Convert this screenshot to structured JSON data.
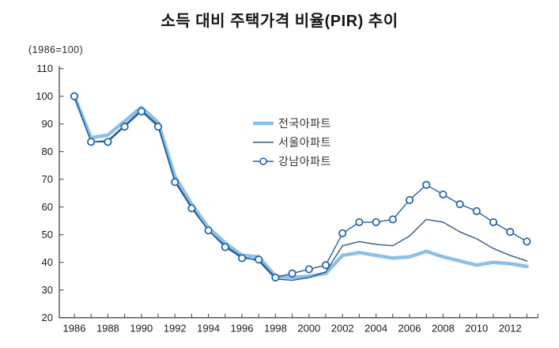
{
  "chart_data": {
    "type": "line",
    "title": "소득 대비 주택가격 비율(PIR) 추이",
    "unit_note": "(1986=100)",
    "xlabel": "",
    "ylabel": "",
    "ylim": [
      20,
      110
    ],
    "y_ticks": [
      20,
      30,
      40,
      50,
      60,
      70,
      80,
      90,
      100,
      110
    ],
    "x": [
      1986,
      1987,
      1988,
      1989,
      1990,
      1991,
      1992,
      1993,
      1994,
      1995,
      1996,
      1997,
      1998,
      1999,
      2000,
      2001,
      2002,
      2003,
      2004,
      2005,
      2006,
      2007,
      2008,
      2009,
      2010,
      2011,
      2012,
      2013
    ],
    "x_tick_label_years": [
      1986,
      1988,
      1990,
      1992,
      1994,
      1996,
      1998,
      2000,
      2002,
      2004,
      2006,
      2008,
      2010,
      2012
    ],
    "grid": false,
    "legend_position": "inside-upper-middle",
    "axis_color": "#4a4a4a",
    "series": [
      {
        "name": "전국아파트",
        "color": "#8CC0E8",
        "line_width": 4.5,
        "marker": false,
        "values": [
          100,
          85,
          86,
          91,
          96,
          90.5,
          71,
          61,
          52.5,
          47,
          42.5,
          42,
          35,
          34.5,
          35,
          36,
          42.5,
          43.5,
          42.5,
          41.5,
          42,
          44,
          42,
          40.5,
          39,
          40,
          39.5,
          38.5
        ]
      },
      {
        "name": "서울아파트",
        "color": "#33587D",
        "line_width": 1.4,
        "marker": false,
        "values": [
          100,
          83.5,
          84,
          89.5,
          95,
          89.5,
          69.5,
          60,
          51.5,
          46,
          42,
          40.5,
          34,
          33.5,
          34.5,
          36.5,
          46,
          47.5,
          46.5,
          46,
          49.5,
          55.5,
          54.5,
          51,
          48.5,
          45,
          42.5,
          40.5
        ]
      },
      {
        "name": "강남아파트",
        "color": "#2061A6",
        "line_width": 1.4,
        "marker": true,
        "marker_shape": "open-circle",
        "values": [
          100,
          83.5,
          83.5,
          89,
          94.5,
          89,
          69,
          59.5,
          51.5,
          45.5,
          41.5,
          41,
          34.5,
          36,
          37.5,
          39,
          50.5,
          54.5,
          54.5,
          55.5,
          62.5,
          68,
          64.5,
          61,
          58.5,
          54.5,
          51,
          47.5
        ]
      }
    ]
  }
}
